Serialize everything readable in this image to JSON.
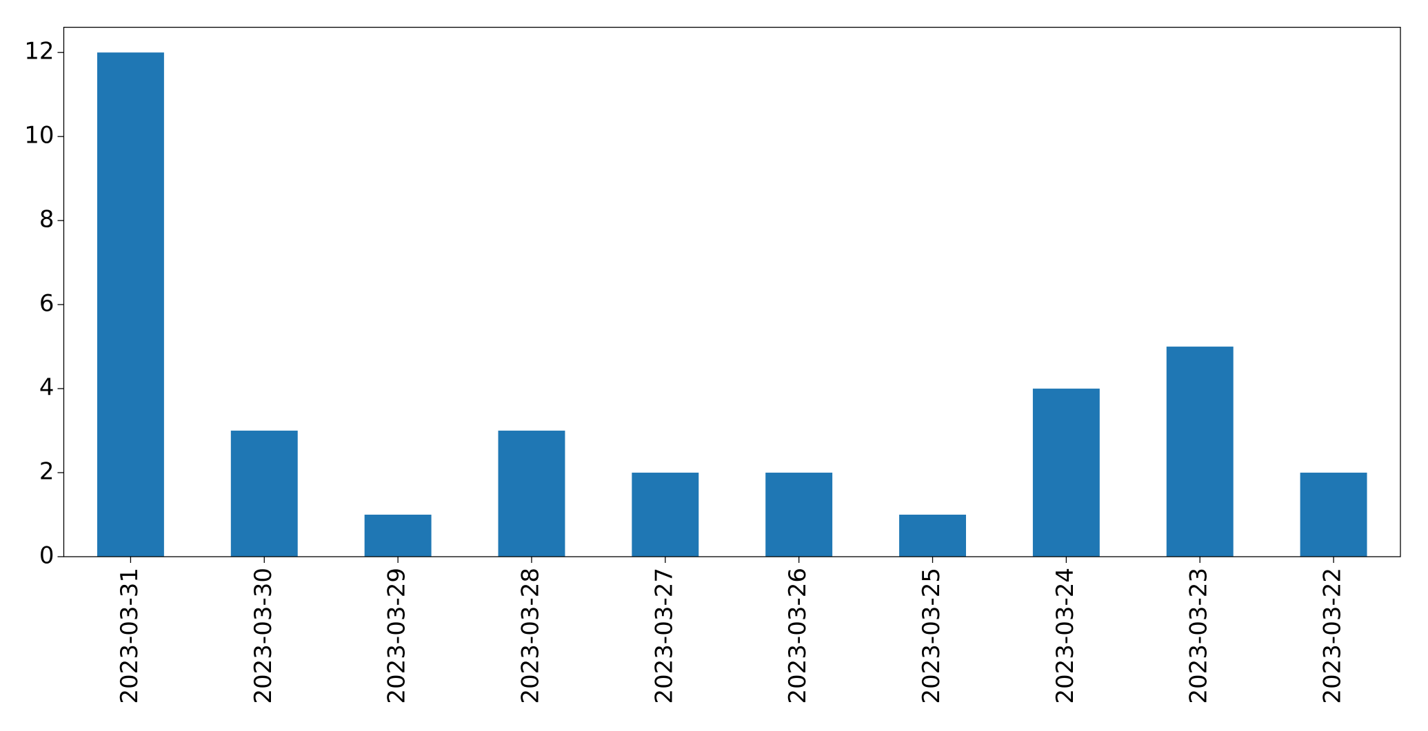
{
  "chart_data": {
    "type": "bar",
    "categories": [
      "2023-03-31",
      "2023-03-30",
      "2023-03-29",
      "2023-03-28",
      "2023-03-27",
      "2023-03-26",
      "2023-03-25",
      "2023-03-24",
      "2023-03-23",
      "2023-03-22"
    ],
    "values": [
      12,
      3,
      1,
      3,
      2,
      2,
      1,
      4,
      5,
      2
    ],
    "color": "#1f77b4",
    "ylim": [
      0,
      12.6
    ],
    "yticks": [
      0,
      2,
      4,
      6,
      8,
      10,
      12
    ],
    "grid": false
  }
}
